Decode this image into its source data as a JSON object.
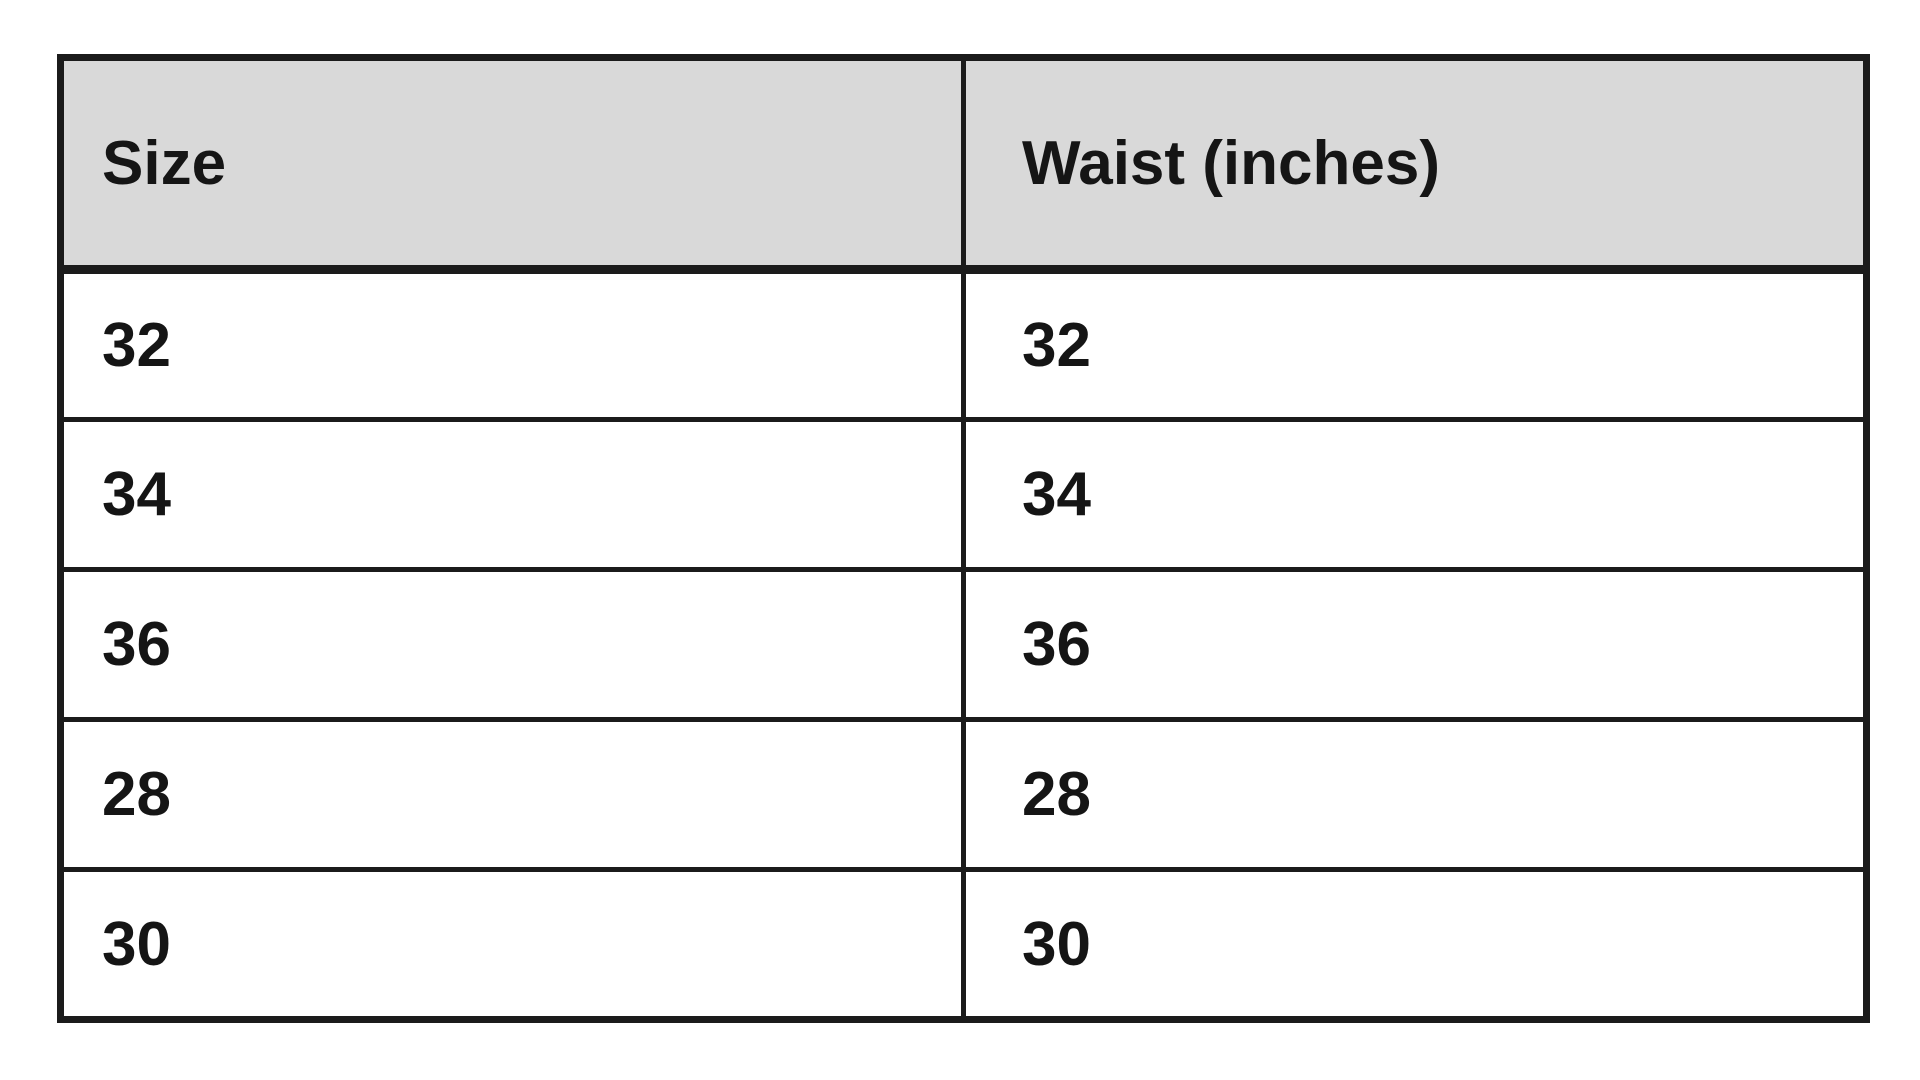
{
  "chart_data": {
    "type": "table",
    "title": "",
    "columns": [
      "Size",
      "Waist (inches)"
    ],
    "rows": [
      [
        "32",
        "32"
      ],
      [
        "34",
        "34"
      ],
      [
        "36",
        "36"
      ],
      [
        "28",
        "28"
      ],
      [
        "30",
        "30"
      ]
    ],
    "layout": {
      "header_row": true,
      "grid": "on",
      "column_count": 2,
      "row_count": 5
    }
  },
  "colors": {
    "header_background": "#d9d9d9",
    "cell_background": "#ffffff",
    "border": "#1b1b1b",
    "text": "#151515",
    "page_background": "#ffffff"
  }
}
